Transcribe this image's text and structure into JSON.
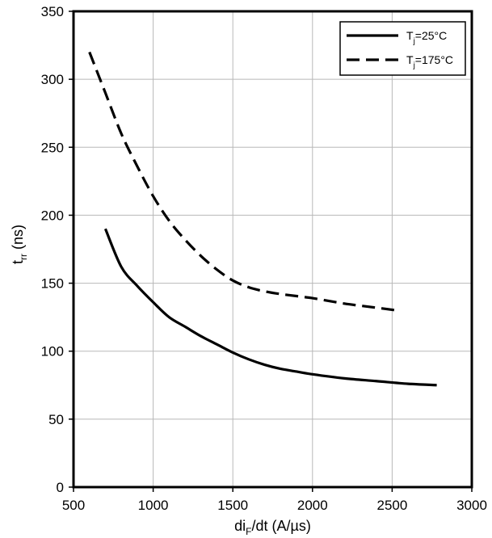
{
  "chart_data": {
    "type": "line",
    "title": "",
    "xlabel": {
      "base": "di",
      "sub": "F",
      "rest": "/dt (A/µs)"
    },
    "ylabel": {
      "base": "t",
      "sub": "rr",
      "rest": " (ns)"
    },
    "xlim": [
      500,
      3000
    ],
    "ylim": [
      0,
      350
    ],
    "xticks": [
      500,
      1000,
      1500,
      2000,
      2500,
      3000
    ],
    "yticks": [
      0,
      50,
      100,
      150,
      200,
      250,
      300,
      350
    ],
    "grid": true,
    "legend": "top-right",
    "series": [
      {
        "label": {
          "base": "T",
          "sub": "j",
          "rest": "=25°C"
        },
        "style": "solid",
        "color": "#000000",
        "points": [
          [
            700,
            190
          ],
          [
            800,
            162
          ],
          [
            900,
            148
          ],
          [
            1000,
            136
          ],
          [
            1100,
            125
          ],
          [
            1200,
            118
          ],
          [
            1300,
            111
          ],
          [
            1400,
            105
          ],
          [
            1500,
            99
          ],
          [
            1600,
            94
          ],
          [
            1700,
            90
          ],
          [
            1800,
            87
          ],
          [
            1900,
            85
          ],
          [
            2000,
            83
          ],
          [
            2200,
            80
          ],
          [
            2400,
            78
          ],
          [
            2600,
            76
          ],
          [
            2780,
            75
          ]
        ]
      },
      {
        "label": {
          "base": "T",
          "sub": "j",
          "rest": "=175°C"
        },
        "style": "dashed",
        "color": "#000000",
        "points": [
          [
            600,
            320
          ],
          [
            700,
            290
          ],
          [
            800,
            260
          ],
          [
            900,
            236
          ],
          [
            1000,
            214
          ],
          [
            1100,
            196
          ],
          [
            1200,
            182
          ],
          [
            1300,
            170
          ],
          [
            1400,
            160
          ],
          [
            1500,
            152
          ],
          [
            1600,
            147
          ],
          [
            1700,
            144
          ],
          [
            1800,
            142
          ],
          [
            2000,
            139
          ],
          [
            2200,
            135
          ],
          [
            2400,
            132
          ],
          [
            2530,
            130
          ]
        ]
      }
    ]
  }
}
